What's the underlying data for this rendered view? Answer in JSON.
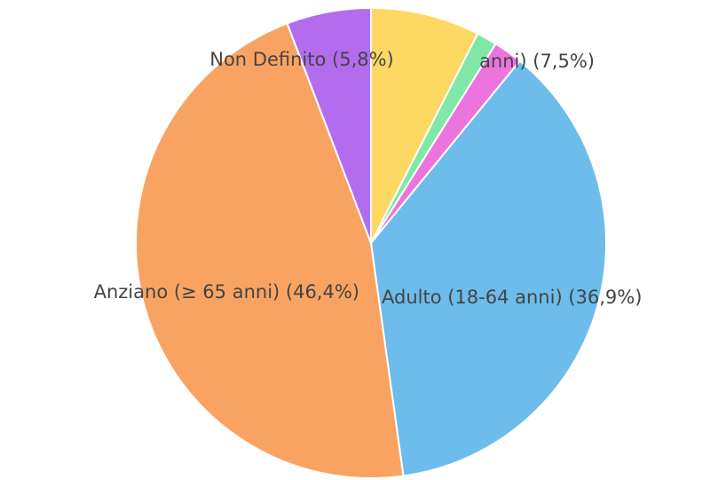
{
  "chart_data": {
    "type": "pie",
    "labels": [
      "anni) (7,5%)",
      null,
      null,
      "Adulto (18-64 anni) (36,9%)",
      "Anziano (≥ 65 anni) (46,4%)",
      "Non Definito (5,8%)"
    ],
    "values": [
      7.5,
      1.4,
      2.0,
      36.9,
      46.4,
      5.8
    ],
    "colors": [
      "#fdd862",
      "#7fe8a6",
      "#ec74de",
      "#6dbcec",
      "#f9a363",
      "#b46cee"
    ]
  }
}
